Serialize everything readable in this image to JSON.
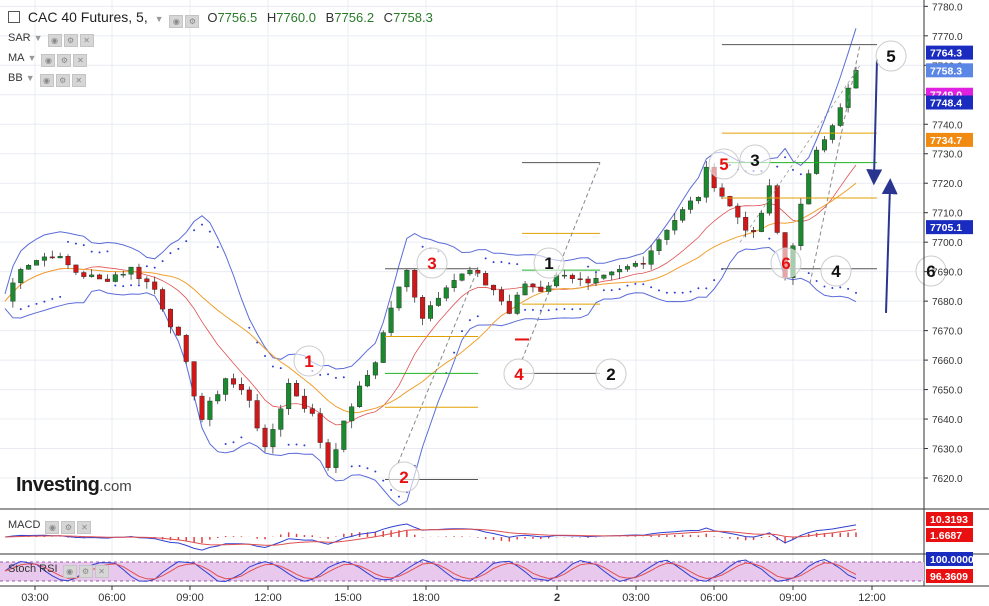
{
  "header": {
    "title": "CAC 40 Futures, 5,",
    "open_label": "O",
    "open": "7756.5",
    "high_label": "H",
    "high": "7760.0",
    "low_label": "B",
    "low": "7756.2",
    "close_label": "C",
    "close": "7758.3"
  },
  "indicators": [
    {
      "label": "SAR"
    },
    {
      "label": "MA"
    },
    {
      "label": "BB"
    }
  ],
  "panels": {
    "macd_label": "MACD",
    "stoch_label": "Stoch RSI"
  },
  "brand": {
    "name": "Investing",
    "suffix": ".com"
  },
  "colors": {
    "bull": "#1b8a2e",
    "bear": "#d01818",
    "bands": "#5b6cd9",
    "ma": "#f0a030",
    "sar": "#3040d0",
    "grey_line": "#666666",
    "orange_level": "#e0a000",
    "green_level": "#20b020",
    "arrow": "#2a3590",
    "wave_red": "#e81010"
  },
  "chart_data": {
    "type": "candlestick",
    "title": "CAC 40 Futures, 5",
    "ylim": [
      7610,
      7785
    ],
    "y_ticks": [
      7620,
      7630,
      7640,
      7650,
      7660,
      7670,
      7680,
      7690,
      7700,
      7710,
      7720,
      7730,
      7740,
      7750,
      7760,
      7770,
      7780
    ],
    "y_tick_labels": [
      "7620.0",
      "7630.0",
      "7640.0",
      "7650.0",
      "7660.0",
      "7670.0",
      "7680.0",
      "7690.0",
      "7700.0",
      "7710.0",
      "7720.0",
      "7730.0",
      "7740.0",
      "7750.0",
      "7760.0",
      "7770.0",
      "7780.0"
    ],
    "x_ticks": [
      "03:00",
      "06:00",
      "09:00",
      "12:00",
      "15:00",
      "18:00",
      "2",
      "03:00",
      "06:00",
      "09:00",
      "12:00"
    ],
    "grid": true,
    "price_path": [
      [
        0,
        7680
      ],
      [
        2,
        7692
      ],
      [
        6,
        7696
      ],
      [
        9,
        7690
      ],
      [
        12,
        7687
      ],
      [
        16,
        7691
      ],
      [
        19,
        7684
      ],
      [
        22,
        7667
      ],
      [
        25,
        7640
      ],
      [
        28,
        7654
      ],
      [
        31,
        7647
      ],
      [
        33,
        7629
      ],
      [
        36,
        7652
      ],
      [
        39,
        7641
      ],
      [
        41,
        7624
      ],
      [
        44,
        7645
      ],
      [
        47,
        7660
      ],
      [
        49,
        7678
      ],
      [
        51,
        7690
      ],
      [
        53,
        7675
      ],
      [
        56,
        7686
      ],
      [
        59,
        7690
      ],
      [
        62,
        7684
      ],
      [
        64,
        7676
      ],
      [
        66,
        7686
      ],
      [
        68,
        7684
      ],
      [
        71,
        7690
      ],
      [
        74,
        7685
      ],
      [
        78,
        7690
      ],
      [
        81,
        7694
      ],
      [
        84,
        7705
      ],
      [
        88,
        7716
      ],
      [
        89,
        7724
      ],
      [
        92,
        7712
      ],
      [
        95,
        7702
      ],
      [
        97,
        7718
      ],
      [
        99,
        7688
      ],
      [
        101,
        7712
      ],
      [
        103,
        7732
      ],
      [
        106,
        7745
      ],
      [
        108,
        7758.3
      ]
    ],
    "price_labels": [
      {
        "value": 7764.3,
        "text": "7764.3",
        "color": "#1a2cbf"
      },
      {
        "value": 7758.3,
        "text": "7758.3",
        "color": "#5a86e6"
      },
      {
        "value": 7749.0,
        "text": "7749.0",
        "color": "#e020e0"
      },
      {
        "value": 7748.4,
        "text": "7748.4",
        "color": "#1a2cbf"
      },
      {
        "value": 7734.7,
        "text": "7734.7",
        "color": "#f08a10"
      },
      {
        "value": 7705.1,
        "text": "7705.1",
        "color": "#1a2cbf"
      }
    ],
    "wave_labels": [
      {
        "text": "1",
        "color": "#e81010",
        "circle": true
      },
      {
        "text": "2",
        "color": "#e81010",
        "circle": true
      },
      {
        "text": "3",
        "color": "#e81010",
        "circle": true
      },
      {
        "text": "4",
        "color": "#e81010",
        "circle": true
      },
      {
        "text": "5",
        "color": "#e81010",
        "circle": true
      },
      {
        "text": "6",
        "color": "#e81010",
        "circle": true
      },
      {
        "text": "1",
        "color": "#111111",
        "circle": true
      },
      {
        "text": "2",
        "color": "#111111",
        "circle": true
      },
      {
        "text": "3",
        "color": "#111111",
        "circle": true
      },
      {
        "text": "4",
        "color": "#111111",
        "circle": true
      },
      {
        "text": "5",
        "color": "#111111",
        "circle": true
      },
      {
        "text": "6",
        "color": "#111111",
        "circle": true
      }
    ],
    "macd": {
      "labels": [
        {
          "text": "10.3193",
          "color": "#e81010"
        },
        {
          "text": "1.6687",
          "color": "#e81010"
        }
      ]
    },
    "stoch_rsi": {
      "labels": [
        {
          "text": "100.0000",
          "color": "#1a2cbf"
        },
        {
          "text": "96.3609",
          "color": "#e81010"
        }
      ]
    }
  }
}
